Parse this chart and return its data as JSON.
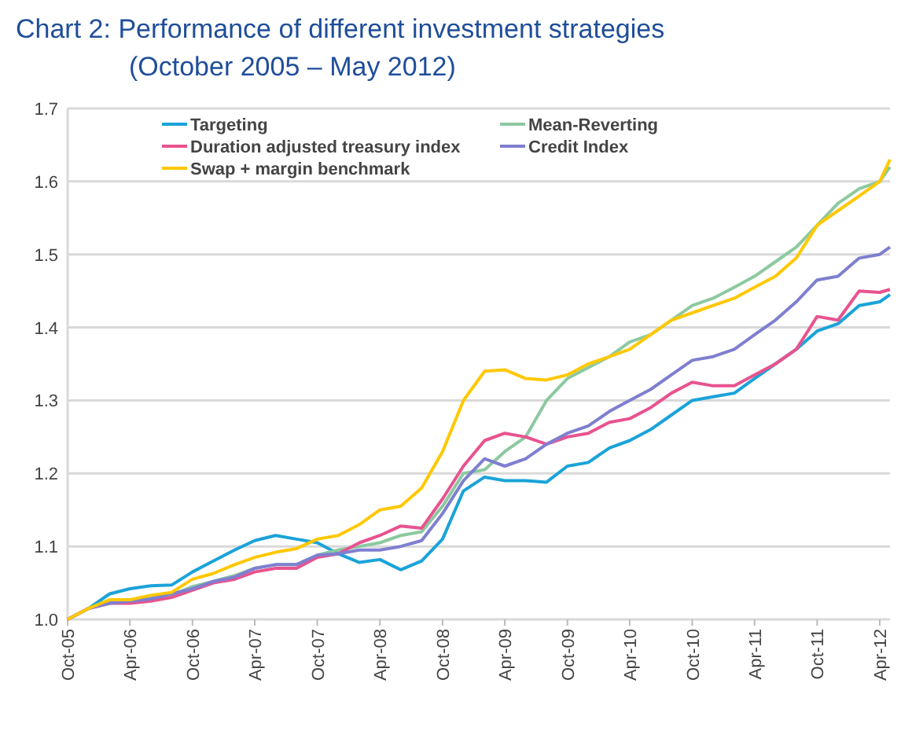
{
  "chart_data": {
    "type": "line",
    "title": "Chart 2:   Performance of different investment strategies",
    "subtitle": "(October 2005 – May 2012)",
    "x": [
      "2005-10",
      "2005-12",
      "2006-02",
      "2006-04",
      "2006-06",
      "2006-08",
      "2006-10",
      "2006-12",
      "2007-02",
      "2007-04",
      "2007-06",
      "2007-08",
      "2007-10",
      "2007-12",
      "2008-02",
      "2008-04",
      "2008-06",
      "2008-08",
      "2008-10",
      "2008-12",
      "2009-02",
      "2009-04",
      "2009-06",
      "2009-08",
      "2009-10",
      "2009-12",
      "2010-02",
      "2010-04",
      "2010-06",
      "2010-08",
      "2010-10",
      "2010-12",
      "2011-02",
      "2011-04",
      "2011-06",
      "2011-08",
      "2011-10",
      "2011-12",
      "2012-02",
      "2012-04",
      "2012-05"
    ],
    "series": [
      {
        "name": "Targeting",
        "color": "#1aa3d9",
        "values": [
          1.0,
          1.015,
          1.035,
          1.042,
          1.046,
          1.047,
          1.065,
          1.08,
          1.095,
          1.108,
          1.115,
          1.11,
          1.105,
          1.09,
          1.078,
          1.082,
          1.068,
          1.08,
          1.11,
          1.176,
          1.195,
          1.19,
          1.19,
          1.188,
          1.21,
          1.215,
          1.235,
          1.245,
          1.26,
          1.28,
          1.3,
          1.305,
          1.31,
          1.33,
          1.35,
          1.37,
          1.395,
          1.405,
          1.43,
          1.435,
          1.445
        ]
      },
      {
        "name": "Mean-Reverting",
        "color": "#8cc9a0",
        "values": [
          1.0,
          1.015,
          1.025,
          1.025,
          1.03,
          1.033,
          1.045,
          1.052,
          1.06,
          1.07,
          1.075,
          1.075,
          1.088,
          1.095,
          1.1,
          1.105,
          1.115,
          1.12,
          1.155,
          1.2,
          1.205,
          1.23,
          1.25,
          1.3,
          1.33,
          1.345,
          1.36,
          1.38,
          1.39,
          1.41,
          1.43,
          1.44,
          1.455,
          1.47,
          1.49,
          1.51,
          1.54,
          1.57,
          1.59,
          1.6,
          1.62
        ]
      },
      {
        "name": "Duration adjusted treasury index",
        "color": "#e8538f",
        "values": [
          1.0,
          1.015,
          1.022,
          1.022,
          1.025,
          1.03,
          1.04,
          1.05,
          1.055,
          1.065,
          1.07,
          1.07,
          1.085,
          1.09,
          1.105,
          1.115,
          1.128,
          1.125,
          1.165,
          1.21,
          1.245,
          1.255,
          1.25,
          1.24,
          1.25,
          1.255,
          1.27,
          1.275,
          1.29,
          1.31,
          1.325,
          1.32,
          1.32,
          1.335,
          1.35,
          1.37,
          1.415,
          1.41,
          1.45,
          1.448,
          1.452
        ]
      },
      {
        "name": "Credit Index",
        "color": "#7f7fd0",
        "values": [
          1.0,
          1.015,
          1.022,
          1.025,
          1.028,
          1.035,
          1.042,
          1.052,
          1.058,
          1.07,
          1.075,
          1.075,
          1.088,
          1.09,
          1.095,
          1.095,
          1.1,
          1.108,
          1.145,
          1.19,
          1.22,
          1.21,
          1.22,
          1.24,
          1.255,
          1.265,
          1.285,
          1.3,
          1.315,
          1.335,
          1.355,
          1.36,
          1.37,
          1.39,
          1.41,
          1.435,
          1.465,
          1.47,
          1.495,
          1.5,
          1.51
        ]
      },
      {
        "name": "Swap + margin benchmark",
        "color": "#ffc800",
        "values": [
          1.0,
          1.015,
          1.027,
          1.027,
          1.033,
          1.037,
          1.055,
          1.063,
          1.075,
          1.085,
          1.092,
          1.097,
          1.11,
          1.115,
          1.13,
          1.15,
          1.155,
          1.18,
          1.23,
          1.3,
          1.34,
          1.342,
          1.33,
          1.328,
          1.335,
          1.35,
          1.36,
          1.37,
          1.39,
          1.41,
          1.42,
          1.43,
          1.44,
          1.455,
          1.47,
          1.495,
          1.54,
          1.56,
          1.58,
          1.6,
          1.63
        ]
      }
    ],
    "xlim": [
      "2005-10",
      "2012-05"
    ],
    "xticks": [
      {
        "value": "2005-10",
        "label": "Oct-05"
      },
      {
        "value": "2006-04",
        "label": "Apr-06"
      },
      {
        "value": "2006-10",
        "label": "Oct-06"
      },
      {
        "value": "2007-04",
        "label": "Apr-07"
      },
      {
        "value": "2007-10",
        "label": "Oct-07"
      },
      {
        "value": "2008-04",
        "label": "Apr-08"
      },
      {
        "value": "2008-10",
        "label": "Oct-08"
      },
      {
        "value": "2009-04",
        "label": "Apr-09"
      },
      {
        "value": "2009-10",
        "label": "Oct-09"
      },
      {
        "value": "2010-04",
        "label": "Apr-10"
      },
      {
        "value": "2010-10",
        "label": "Oct-10"
      },
      {
        "value": "2011-04",
        "label": "Apr-11"
      },
      {
        "value": "2011-10",
        "label": "Oct-11"
      },
      {
        "value": "2012-04",
        "label": "Apr-12"
      }
    ],
    "ylim": [
      1.0,
      1.7
    ],
    "yticks": [
      {
        "value": 1.0,
        "label": "1.0"
      },
      1.1,
      1.2,
      1.3,
      1.4,
      1.5,
      1.6,
      1.7
    ],
    "grid": "y",
    "legend": "top",
    "marker": "none",
    "line_style": "solid"
  }
}
